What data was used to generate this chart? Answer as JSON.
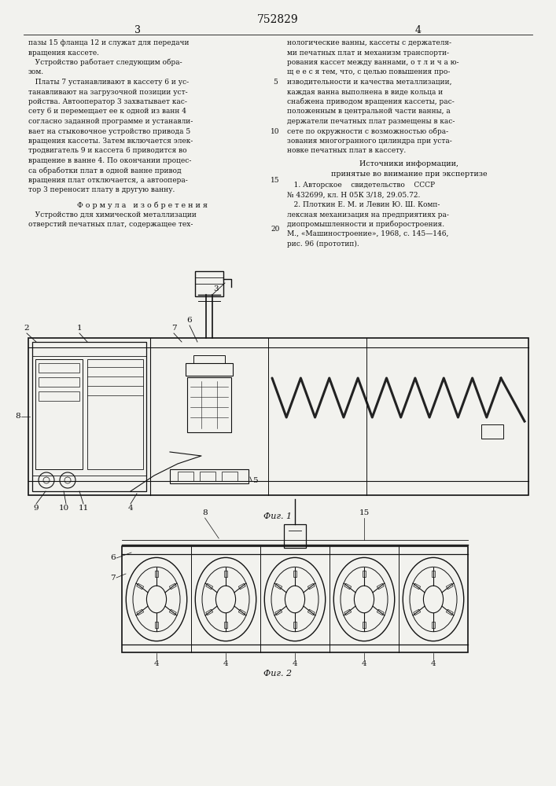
{
  "patent_number": "752829",
  "page_left": "3",
  "page_right": "4",
  "bg_color": "#f2f2ee",
  "text_color": "#111111",
  "line_color": "#111111",
  "left_col_text": [
    "пазы 15 фланца 12 и служат для передачи",
    "вращения кассете.",
    "   Устройство работает следующим обра-",
    "зом.",
    "   Платы 7 устанавливают в кассету 6 и ус-",
    "танавливают на загрузочной позиции уст-",
    "ройства. Автооператор 3 захватывает кас-",
    "сету 6 и перемещает ее к одной из ванн 4",
    "согласно заданной программе и устанавли-",
    "вает на стыковочное устройство привода 5",
    "вращения кассеты. Затем включается элек-",
    "тродвигатель 9 и кассета 6 приводится во",
    "вращение в ванне 4. По окончании процес-",
    "са обработки плат в одной ванне привод",
    "вращения плат отключается, а автоопера-",
    "тор 3 переносит плату в другую ванну."
  ],
  "formula_header": "Ф о р м у л а   и з о б р е т е н и я",
  "formula_text": [
    "   Устройство для химической металлизации",
    "отверстий печатных плат, содержащее тех-"
  ],
  "right_col_text": [
    "нологические ванны, кассеты с держателя-",
    "ми печатных плат и механизм транспорти-",
    "рования кассет между ваннами, о т л и ч а ю-",
    "щ е е с я тем, что, с целью повышения про-",
    "изводительности и качества металлизации,",
    "каждая ванна выполнена в виде кольца и",
    "снабжена приводом вращения кассеты, рас-",
    "положенным в центральной части ванны, а",
    "держатели печатных плат размещены в кас-",
    "сете по окружности с возможностью обра-",
    "зования многогранного цилиндра при уста-",
    "новке печатных плат в кассету."
  ],
  "sources_header": "Источники информации,",
  "sources_subheader": "принятые во внимание при экспертизе",
  "sources_text": [
    "   1. Авторское    свидетельство    СССР",
    "№ 432699, кл. Н 05К 3/18, 29.05.72.",
    "   2. Плоткин Е. М. и Левин Ю. Ш. Комп-",
    "лексная механизация на предприятиях ра-",
    "диопромышленности и приборостроения.",
    "М., «Машиностроение», 1968, с. 145—146,",
    "рис. 96 (прототип)."
  ],
  "fig1_label": "Фиг. 1",
  "fig2_label": "Фиг. 2"
}
